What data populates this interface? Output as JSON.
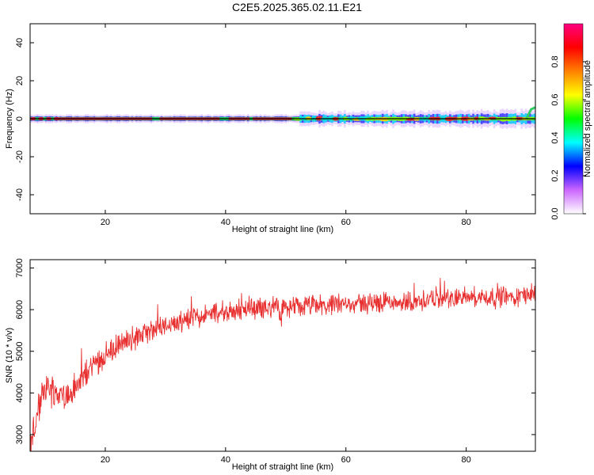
{
  "title": "C2E5.2025.365.02.11.E21",
  "chart_data": [
    {
      "type": "heatmap",
      "xlabel": "Height of straight line (km)",
      "ylabel": "Frequency (Hz)",
      "xlim": [
        7.5,
        91.5
      ],
      "ylim": [
        -50,
        50
      ],
      "xticks": [
        20,
        40,
        60,
        80
      ],
      "yticks": [
        -40,
        -20,
        0,
        20,
        40
      ],
      "xtick_labels": [
        "20",
        "40",
        "60",
        "80"
      ],
      "ytick_labels": [
        "-40",
        "-20",
        "0",
        "20",
        "40"
      ],
      "ridge_frequency": 0,
      "colorbar": {
        "label": "Normalized spectral amplitude",
        "range": [
          0,
          1
        ],
        "ticks": [
          0.0,
          0.2,
          0.4,
          0.6,
          0.8
        ],
        "tick_labels": [
          "0.0",
          "0.2",
          "0.4",
          "0.6",
          "0.8"
        ],
        "colors": [
          "#ffffff",
          "#cc66ff",
          "#0000ff",
          "#00ffff",
          "#00ff00",
          "#ffff00",
          "#ff8000",
          "#ff0000",
          "#ff0080"
        ]
      }
    },
    {
      "type": "line",
      "xlabel": "Height of straight line (km)",
      "ylabel": "SNR (10 * v/v)",
      "xlim": [
        7.5,
        91.5
      ],
      "ylim": [
        2600,
        7200
      ],
      "xticks": [
        20,
        40,
        60,
        80
      ],
      "yticks": [
        3000,
        4000,
        5000,
        6000,
        7000
      ],
      "xtick_labels": [
        "20",
        "40",
        "60",
        "80"
      ],
      "ytick_labels": [
        "3000",
        "4000",
        "5000",
        "6000",
        "7000"
      ],
      "line_color": "#e83030",
      "series": [
        {
          "name": "SNR",
          "x": [
            7.5,
            10,
            12,
            14,
            16,
            18,
            20,
            22,
            24,
            26,
            28,
            30,
            32,
            34,
            36,
            38,
            40,
            42,
            44,
            46,
            48,
            50,
            52,
            54,
            56,
            58,
            60,
            62,
            64,
            66,
            68,
            70,
            72,
            74,
            76,
            78,
            80,
            82,
            84,
            86,
            88,
            90,
            91.5
          ],
          "values": [
            2700,
            4200,
            4000,
            3900,
            4300,
            4700,
            4900,
            5100,
            5300,
            5400,
            5500,
            5650,
            5700,
            5800,
            5850,
            5900,
            5950,
            6000,
            6000,
            6050,
            6050,
            6000,
            6050,
            6100,
            6100,
            6100,
            6100,
            6150,
            6150,
            6200,
            6200,
            6200,
            6200,
            6250,
            6250,
            6300,
            6300,
            6300,
            6300,
            6300,
            6300,
            6350,
            6400
          ]
        }
      ]
    }
  ]
}
